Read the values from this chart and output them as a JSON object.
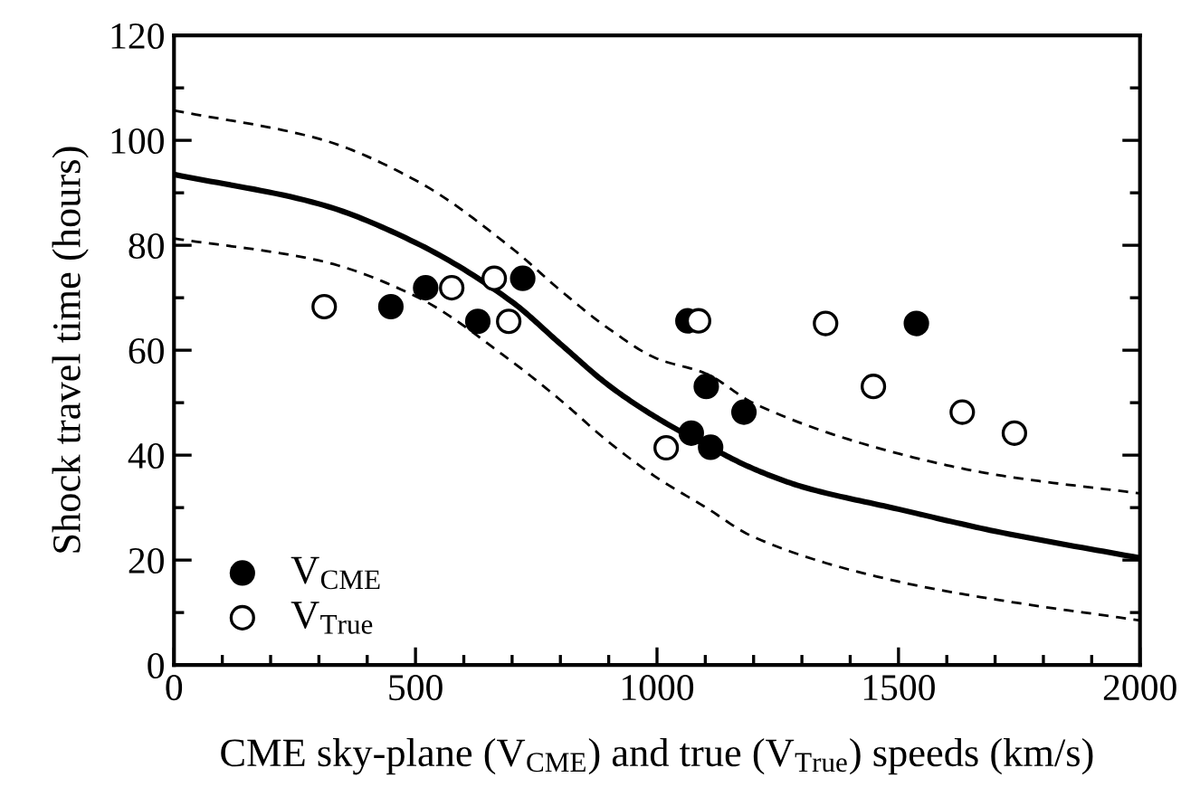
{
  "chart_data": {
    "type": "scatter",
    "xlabel": "CME sky-plane (V$_{CME}$) and true (V$_{True}$) speeds (km/s)",
    "ylabel": "Shock travel time (hours)",
    "xlim": [
      0,
      2000
    ],
    "xticks": [
      0,
      500,
      1000,
      1500,
      2000
    ],
    "ylim": [
      0,
      120
    ],
    "yticks": [
      0,
      20,
      40,
      60,
      80,
      100,
      120
    ],
    "grid": false,
    "legend": "bottom left",
    "series": [
      {
        "type": "line",
        "color": "#000000",
        "line_style": "solid",
        "x": [
          0,
          300,
          500,
          700,
          800,
          900,
          1000,
          1100,
          1200,
          1300,
          1500,
          1700,
          2000
        ],
        "values": [
          93.5,
          87.9,
          80.5,
          69.2,
          61.2,
          53.3,
          47.1,
          42,
          37.4,
          34,
          29.7,
          25.5,
          20.4
        ]
      },
      {
        "type": "line",
        "color": "#000000",
        "line_style": "dashed",
        "x": [
          0,
          300,
          500,
          700,
          800,
          900,
          1000,
          1100,
          1200,
          1500,
          1700,
          2000
        ],
        "values": [
          105.7,
          100.3,
          92.4,
          79.4,
          71.4,
          64.1,
          58.4,
          55.6,
          49.9,
          40.3,
          36.3,
          32.7
        ]
      },
      {
        "type": "line",
        "color": "#000000",
        "line_style": "dashed",
        "x": [
          0,
          300,
          500,
          700,
          800,
          900,
          1000,
          1100,
          1200,
          1500,
          1700,
          2000
        ],
        "values": [
          81.3,
          77.1,
          70.3,
          57.8,
          50.5,
          42.5,
          35.7,
          30.1,
          24.4,
          15.9,
          12.5,
          8.5
        ]
      },
      {
        "name": "V$_{CME}$",
        "marker": "circle",
        "color": "#000000",
        "x": [
          449,
          521,
          629,
          722,
          1071,
          1064,
          1102,
          1111,
          1180,
          1537
        ],
        "values": [
          68.3,
          71.9,
          65.5,
          73.7,
          44.2,
          65.6,
          53.1,
          41.5,
          48.2,
          65.1
        ]
      },
      {
        "name": "V$_{True}$",
        "marker": "circle",
        "color": "#ffffff",
        "x": [
          311,
          575,
          663,
          693,
          1019,
          1086,
          1349,
          1448,
          1632,
          1740
        ],
        "values": [
          68.3,
          71.9,
          73.7,
          65.5,
          41.4,
          65.6,
          65.1,
          53.1,
          48.2,
          44.2
        ]
      }
    ]
  }
}
